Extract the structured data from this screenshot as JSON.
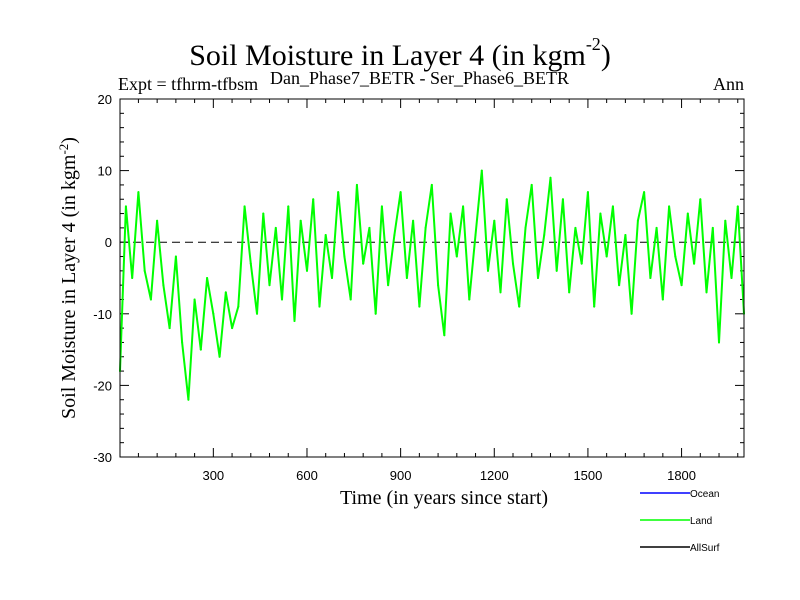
{
  "chart_data": {
    "type": "line",
    "title": "Soil Moisture in Layer 4 (in kgm",
    "title_sup": "-2",
    "title_end": ")",
    "expt_label": "Expt = tfhrm-tfbsm",
    "subtitle": "Dan_Phase7_BETR - Ser_Phase6_BETR",
    "season": "Ann",
    "xlabel": "Time (in years since start)",
    "ylabel": "Soil Moisture in Layer 4 (in kgm",
    "ylabel_sup": "-2",
    "ylabel_end": ")",
    "xlim": [
      1,
      2000
    ],
    "ylim": [
      -30,
      20
    ],
    "x_ticks": [
      300,
      600,
      900,
      1200,
      1500,
      1800
    ],
    "x_tick_labels": [
      "300",
      "600",
      "900",
      "1200",
      "1500",
      "1800"
    ],
    "y_ticks": [
      -30,
      -20,
      -10,
      0,
      10,
      20
    ],
    "y_tick_labels": [
      "-30",
      "-20",
      "-10",
      "0",
      "10",
      "20"
    ],
    "zero_line": 0,
    "series": [
      {
        "name": "Land",
        "color": "#00ff00",
        "x": [
          1,
          20,
          40,
          60,
          80,
          100,
          120,
          140,
          160,
          180,
          200,
          220,
          240,
          260,
          280,
          300,
          320,
          340,
          360,
          380,
          400,
          420,
          440,
          460,
          480,
          500,
          520,
          540,
          560,
          580,
          600,
          620,
          640,
          660,
          680,
          700,
          720,
          740,
          760,
          780,
          800,
          820,
          840,
          860,
          880,
          900,
          920,
          940,
          960,
          980,
          1000,
          1020,
          1040,
          1060,
          1080,
          1100,
          1120,
          1140,
          1160,
          1180,
          1200,
          1220,
          1240,
          1260,
          1280,
          1300,
          1320,
          1340,
          1360,
          1380,
          1400,
          1420,
          1440,
          1460,
          1480,
          1500,
          1520,
          1540,
          1560,
          1580,
          1600,
          1620,
          1640,
          1660,
          1680,
          1700,
          1720,
          1740,
          1760,
          1780,
          1800,
          1820,
          1840,
          1860,
          1880,
          1900,
          1920,
          1940,
          1960,
          1980,
          2000
        ],
        "values": [
          -18,
          5,
          -5,
          7,
          -4,
          -8,
          3,
          -6,
          -12,
          -2,
          -14,
          -22,
          -8,
          -15,
          -5,
          -10,
          -16,
          -7,
          -12,
          -9,
          5,
          -3,
          -10,
          4,
          -6,
          2,
          -8,
          5,
          -11,
          3,
          -4,
          6,
          -9,
          1,
          -5,
          7,
          -2,
          -8,
          8,
          -3,
          2,
          -10,
          5,
          -6,
          1,
          7,
          -5,
          3,
          -9,
          2,
          8,
          -6,
          -13,
          4,
          -2,
          5,
          -8,
          1,
          10,
          -4,
          3,
          -7,
          6,
          -3,
          -9,
          2,
          8,
          -5,
          1,
          9,
          -4,
          6,
          -7,
          2,
          -3,
          7,
          -9,
          4,
          -2,
          5,
          -6,
          1,
          -10,
          3,
          7,
          -5,
          2,
          -8,
          5,
          -2,
          -6,
          4,
          -3,
          6,
          -7,
          2,
          -14,
          3,
          -5,
          5,
          -10
        ]
      },
      {
        "name": "Ocean",
        "color": "#0000ff",
        "x": [],
        "values": []
      },
      {
        "name": "AllSurf",
        "color": "#000000",
        "x": [],
        "values": []
      }
    ],
    "legend": [
      {
        "label": "Ocean",
        "color": "#0000ff"
      },
      {
        "label": "Land",
        "color": "#00ff00"
      },
      {
        "label": "AllSurf",
        "color": "#000000"
      }
    ],
    "legend_position": "bottom-right"
  }
}
